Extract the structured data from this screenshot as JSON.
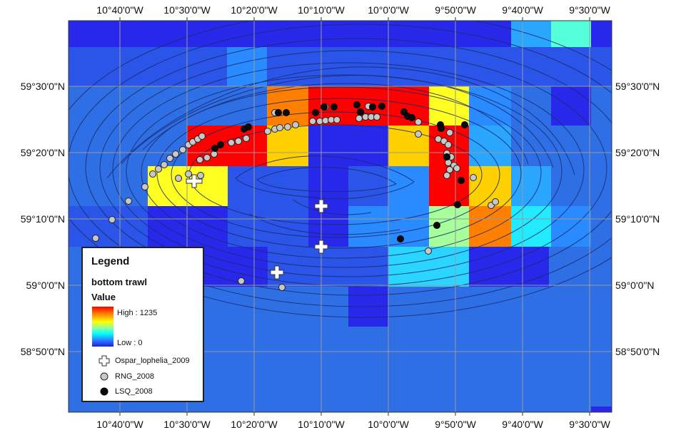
{
  "lon_labels": [
    "10°40'0\"W",
    "10°30'0\"W",
    "10°20'0\"W",
    "10°10'0\"W",
    "10°0'0\"W",
    "9°50'0\"W",
    "9°40'0\"W",
    "9°30'0\"W"
  ],
  "lat_labels": [
    "59°30'0\"N",
    "59°20'0\"N",
    "59°10'0\"N",
    "59°0'0\"N",
    "58°50'0\"N"
  ],
  "legend": {
    "title": "Legend",
    "layer": "bottom trawl",
    "field": "Value",
    "high": "High : 1235",
    "low": "Low : 0",
    "items": [
      {
        "label": "Ospar_lophelia_2009",
        "symbol": "white-cross"
      },
      {
        "label": "RNG_2008",
        "symbol": "grey-circle"
      },
      {
        "label": "LSQ_2008",
        "symbol": "black-circle"
      }
    ]
  },
  "colors": {
    "background_cell": "#2e6fe6",
    "ocean": "#1e40e0",
    "high": "#ff0000",
    "low": "#1e1ee8",
    "contour": "#1a2a6e",
    "graticule": "#9a9a9a"
  }
}
